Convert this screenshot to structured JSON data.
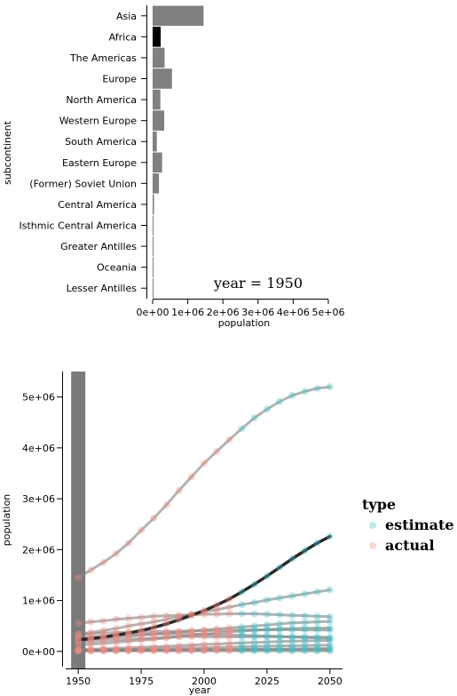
{
  "chart_data": [
    {
      "type": "bar",
      "orientation": "horizontal",
      "xlabel": "population",
      "ylabel": "subcontinent",
      "xlim": [
        0,
        5000000
      ],
      "xticks": [
        "0e+00",
        "1e+06",
        "2e+06",
        "3e+06",
        "4e+06",
        "5e+06"
      ],
      "annotation": "year = 1950",
      "highlight": "Africa",
      "colors": {
        "bar": "#808080",
        "highlight": "#000000"
      },
      "categories": [
        "Asia",
        "Africa",
        "The Americas",
        "Europe",
        "North America",
        "Western Europe",
        "South America",
        "Eastern Europe",
        "(Former) Soviet Union",
        "Central America",
        "Isthmic Central America",
        "Greater Antilles",
        "Oceania",
        "Lesser Antilles"
      ],
      "values": [
        1450000,
        230000,
        340000,
        550000,
        220000,
        330000,
        120000,
        270000,
        180000,
        40000,
        25000,
        20000,
        15000,
        8000
      ]
    },
    {
      "type": "line",
      "xlabel": "year",
      "ylabel": "population",
      "xlim": [
        1945,
        2055
      ],
      "ylim": [
        -300000,
        5500000
      ],
      "xticks": [
        1950,
        1975,
        2000,
        2025,
        2050
      ],
      "yticks": [
        "0e+00",
        "1e+06",
        "2e+06",
        "3e+06",
        "4e+06",
        "5e+06"
      ],
      "legend": {
        "title": "type",
        "entries": [
          "estimate",
          "actual"
        ],
        "position": "right"
      },
      "colors": {
        "estimate": "#40c4c8",
        "actual": "#f08a80",
        "line": "#808080",
        "highlight": "#202020",
        "year_band": "#7a7a7a"
      },
      "highlight_year": 1950,
      "highlight_series": "Africa",
      "x": [
        1950,
        1955,
        1960,
        1965,
        1970,
        1975,
        1980,
        1985,
        1990,
        1995,
        2000,
        2005,
        2010,
        2015,
        2020,
        2025,
        2030,
        2035,
        2040,
        2045,
        2050
      ],
      "actual_until": 2010,
      "series": [
        {
          "key": "Asia",
          "values": [
            1450000,
            1600000,
            1750000,
            1920000,
            2130000,
            2380000,
            2620000,
            2880000,
            3160000,
            3430000,
            3700000,
            3930000,
            4160000,
            4380000,
            4590000,
            4760000,
            4910000,
            5030000,
            5110000,
            5170000,
            5200000
          ]
        },
        {
          "key": "Africa",
          "values": [
            230000,
            250000,
            280000,
            320000,
            360000,
            410000,
            470000,
            540000,
            620000,
            710000,
            800000,
            910000,
            1030000,
            1170000,
            1320000,
            1480000,
            1650000,
            1820000,
            1980000,
            2130000,
            2260000
          ]
        },
        {
          "key": "The Americas",
          "values": [
            340000,
            370000,
            410000,
            450000,
            500000,
            540000,
            580000,
            630000,
            680000,
            730000,
            780000,
            820000,
            870000,
            920000,
            960000,
            1010000,
            1050000,
            1090000,
            1130000,
            1170000,
            1210000
          ]
        },
        {
          "key": "Europe",
          "values": [
            550000,
            580000,
            600000,
            630000,
            650000,
            670000,
            690000,
            700000,
            710000,
            720000,
            730000,
            730000,
            740000,
            740000,
            740000,
            730000,
            720000,
            710000,
            700000,
            690000,
            680000
          ]
        },
        {
          "key": "North America",
          "values": [
            220000,
            240000,
            260000,
            280000,
            300000,
            320000,
            340000,
            360000,
            380000,
            400000,
            420000,
            440000,
            460000,
            480000,
            500000,
            520000,
            540000,
            560000,
            570000,
            580000,
            590000
          ]
        },
        {
          "key": "Western Europe",
          "values": [
            330000,
            345000,
            360000,
            370000,
            380000,
            385000,
            390000,
            393000,
            397000,
            400000,
            405000,
            410000,
            415000,
            420000,
            423000,
            425000,
            425000,
            425000,
            423000,
            420000,
            418000
          ]
        },
        {
          "key": "South America",
          "values": [
            120000,
            140000,
            160000,
            180000,
            200000,
            220000,
            240000,
            265000,
            290000,
            315000,
            340000,
            360000,
            380000,
            400000,
            415000,
            430000,
            440000,
            450000,
            455000,
            458000,
            460000
          ]
        },
        {
          "key": "Eastern Europe",
          "values": [
            270000,
            285000,
            300000,
            315000,
            325000,
            335000,
            340000,
            345000,
            345000,
            340000,
            335000,
            330000,
            325000,
            318000,
            310000,
            302000,
            293000,
            284000,
            275000,
            266000,
            258000
          ]
        },
        {
          "key": "(Former) Soviet Union",
          "values": [
            180000,
            195000,
            215000,
            230000,
            242000,
            253000,
            265000,
            278000,
            290000,
            292000,
            290000,
            286000,
            285000,
            287000,
            289000,
            290000,
            289000,
            287000,
            284000,
            281000,
            278000
          ]
        },
        {
          "key": "Central America",
          "values": [
            40000,
            45000,
            52000,
            60000,
            70000,
            80000,
            90000,
            100000,
            112000,
            124000,
            136000,
            146000,
            156000,
            166000,
            176000,
            185000,
            193000,
            200000,
            206000,
            211000,
            215000
          ]
        },
        {
          "key": "Isthmic Central America",
          "values": [
            25000,
            28000,
            31000,
            35000,
            39000,
            44000,
            49000,
            55000,
            61000,
            67000,
            74000,
            80000,
            86000,
            92000,
            98000,
            103000,
            108000,
            112000,
            116000,
            119000,
            122000
          ]
        },
        {
          "key": "Greater Antilles",
          "values": [
            20000,
            21000,
            23000,
            25000,
            27000,
            29000,
            30000,
            31500,
            33000,
            34500,
            36000,
            37000,
            38000,
            38500,
            39000,
            39000,
            39000,
            38500,
            38000,
            37500,
            37000
          ]
        },
        {
          "key": "Oceania",
          "values": [
            15000,
            16000,
            17000,
            18500,
            20000,
            21500,
            23000,
            24500,
            26500,
            28500,
            31000,
            33500,
            36000,
            39000,
            42000,
            45000,
            48000,
            51000,
            54000,
            56500,
            59000
          ]
        },
        {
          "key": "Lesser Antilles",
          "values": [
            8000,
            8200,
            8400,
            8600,
            8800,
            9000,
            9100,
            9200,
            9300,
            9400,
            9500,
            9550,
            9600,
            9650,
            9700,
            9700,
            9700,
            9650,
            9600,
            9550,
            9500
          ]
        }
      ]
    }
  ]
}
